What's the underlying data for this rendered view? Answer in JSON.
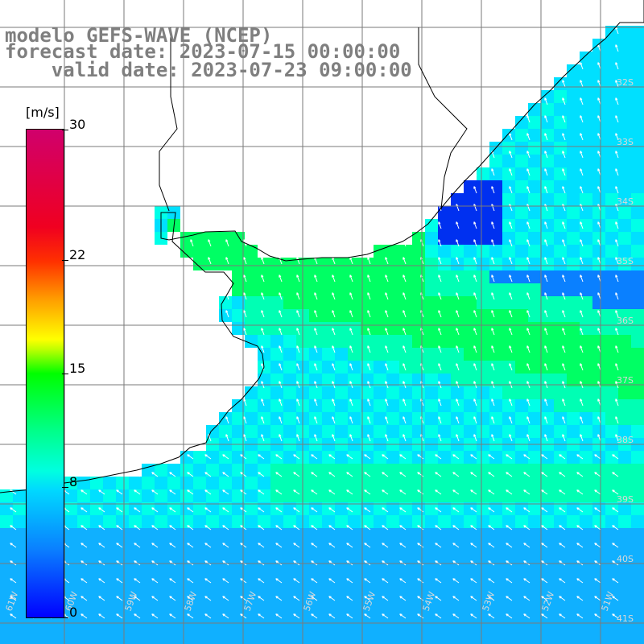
{
  "title": {
    "line1": "modelo GEFS-WAVE (NCEP)",
    "line2": "forecast date: 2023-07-15 00:00:00",
    "line3": "    valid date: 2023-07-23 09:00:00"
  },
  "colorbar": {
    "unit": "[m/s]",
    "ticks": [
      {
        "label": "30",
        "value": 30
      },
      {
        "label": "22",
        "value": 22
      },
      {
        "label": "15",
        "value": 15
      },
      {
        "label": "8",
        "value": 8
      },
      {
        "label": "0",
        "value": 0
      }
    ],
    "range": [
      0,
      30
    ]
  },
  "map": {
    "variable": "wind speed",
    "lon_labels": [
      "61W",
      "60W",
      "59W",
      "58W",
      "57W",
      "56W",
      "55W",
      "54W",
      "53W",
      "52W",
      "51W"
    ],
    "lat_labels": [
      "32S",
      "33S",
      "34S",
      "35S",
      "36S",
      "37S",
      "38S",
      "39S",
      "40S",
      "41S"
    ],
    "colors": {
      "land": "#ffffff",
      "grid": "#7a7a7a",
      "coast": "#000000",
      "arrows": "#ffffff"
    }
  }
}
